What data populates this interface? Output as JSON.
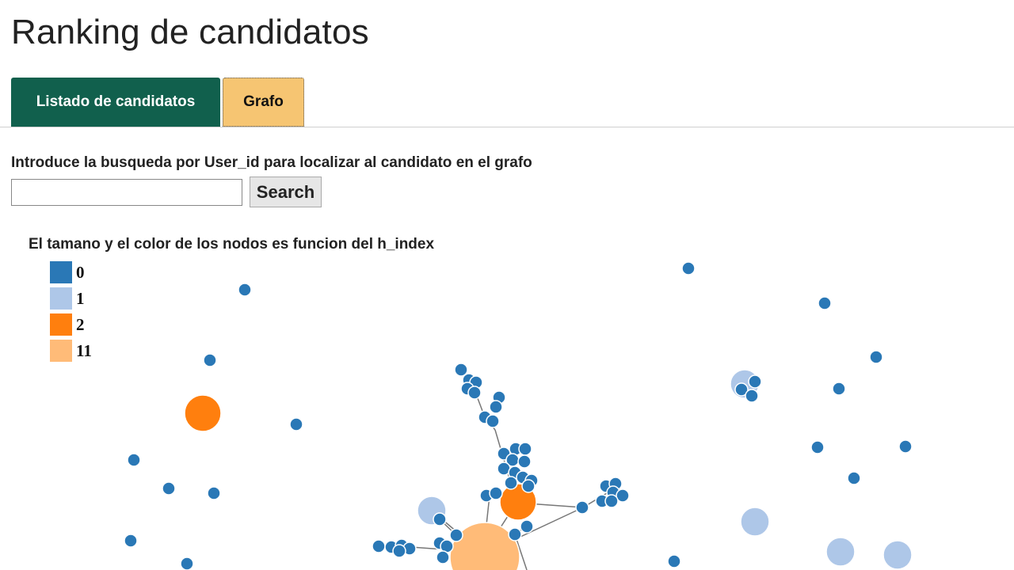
{
  "page": {
    "title": "Ranking de candidatos"
  },
  "tabs": [
    {
      "label": "Listado de candidatos",
      "active": false,
      "color": "#11604d"
    },
    {
      "label": "Grafo",
      "active": true,
      "color": "#f6c572"
    }
  ],
  "search": {
    "prompt": "Introduce la busqueda por User_id para localizar al candidato en el grafo",
    "input_value": "",
    "button_label": "Search"
  },
  "graph": {
    "caption": "El tamano y el color de los nodos es funcion del h_index",
    "legend": [
      {
        "label": "0",
        "color": "#2a78b6"
      },
      {
        "label": "1",
        "color": "#aec7e8"
      },
      {
        "label": "2",
        "color": "#ff7f0e"
      },
      {
        "label": "11",
        "color": "#ffbb78"
      }
    ]
  }
}
